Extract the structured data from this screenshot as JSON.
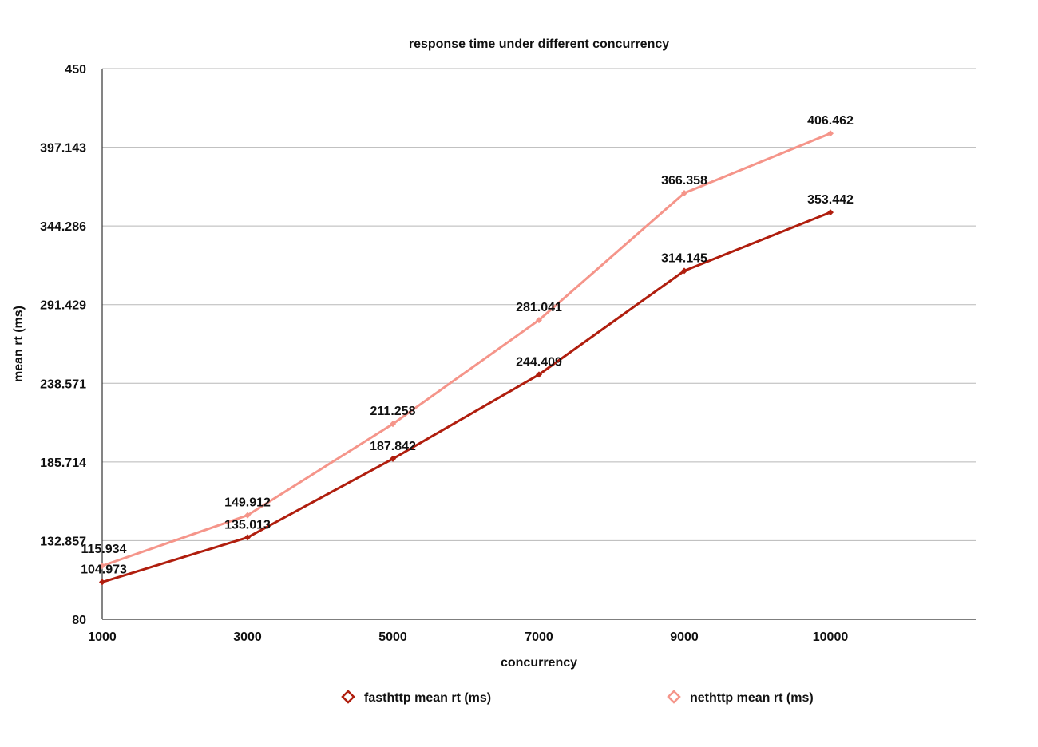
{
  "chart_data": {
    "type": "line",
    "title": "response time under different concurrency",
    "xlabel": "concurrency",
    "ylabel": "mean rt (ms)",
    "x": [
      1000,
      3000,
      5000,
      7000,
      9000,
      10000
    ],
    "x_tick_labels": [
      "1000",
      "3000",
      "5000",
      "7000",
      "9000",
      "10000"
    ],
    "ylim": [
      80,
      450
    ],
    "y_ticks": [
      80,
      132.857,
      185.714,
      238.571,
      291.429,
      344.286,
      397.143,
      450
    ],
    "y_tick_labels": [
      "80",
      "132.857",
      "185.714",
      "238.571",
      "291.429",
      "344.286",
      "397.143",
      "450"
    ],
    "grid": true,
    "legend_position": "bottom",
    "series": [
      {
        "name": "fasthttp mean rt (ms)",
        "color": "#b01e0e",
        "values": [
          104.973,
          135.013,
          187.842,
          244.409,
          314.145,
          353.442
        ],
        "labels": [
          "104.973",
          "135.013",
          "187.842",
          "244.409",
          "314.145",
          "353.442"
        ]
      },
      {
        "name": "nethttp mean rt (ms)",
        "color": "#f5958a",
        "values": [
          115.934,
          149.912,
          211.258,
          281.041,
          366.358,
          406.462
        ],
        "labels": [
          "115.934",
          "149.912",
          "211.258",
          "281.041",
          "366.358",
          "406.462"
        ]
      }
    ]
  }
}
